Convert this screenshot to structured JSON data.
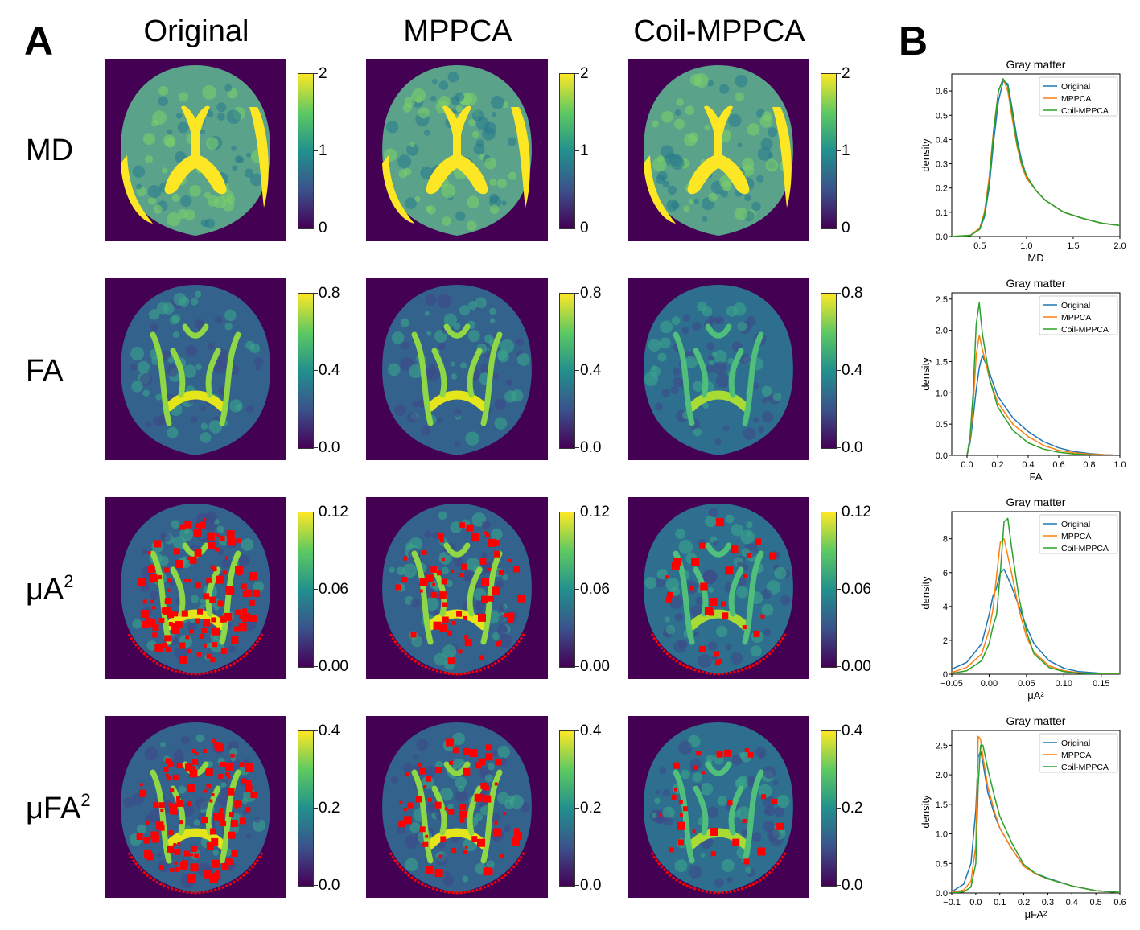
{
  "panel_a": {
    "letter": "A",
    "columns": [
      "Original",
      "MPPCA",
      "Coil-MPPCA"
    ],
    "rows": [
      {
        "label": "MD",
        "sup": "",
        "ticks": [
          "2",
          "1",
          "0"
        ]
      },
      {
        "label": "FA",
        "sup": "",
        "ticks": [
          "0.8",
          "0.4",
          "0.0"
        ]
      },
      {
        "label": "μA",
        "sup": "2",
        "ticks": [
          "0.12",
          "0.06",
          "0.00"
        ]
      },
      {
        "label": "μFA",
        "sup": "2",
        "ticks": [
          "0.4",
          "0.2",
          "0.0"
        ]
      }
    ],
    "colormap": [
      "#440154",
      "#3b528b",
      "#21908d",
      "#5dc962",
      "#fde725"
    ],
    "negative_marker_color": "#ff0000"
  },
  "panel_b": {
    "letter": "B",
    "colors": {
      "Original": "#1f77b4",
      "MPPCA": "#ff7f0e",
      "Coil-MPPCA": "#2ca02c"
    }
  },
  "chart_data": [
    {
      "type": "line",
      "title": "Gray matter",
      "xlabel": "MD",
      "ylabel": "density",
      "xlim": [
        0.2,
        2.0
      ],
      "ylim": [
        0,
        0.67
      ],
      "xticks": [
        "0.5",
        "1.0",
        "1.5",
        "2.0"
      ],
      "xtick_values": [
        0.5,
        1.0,
        1.5,
        2.0
      ],
      "yticks": [
        "0.0",
        "0.1",
        "0.2",
        "0.3",
        "0.4",
        "0.5",
        "0.6"
      ],
      "ytick_values": [
        0,
        0.1,
        0.2,
        0.3,
        0.4,
        0.5,
        0.6
      ],
      "legend": [
        "Original",
        "MPPCA",
        "Coil-MPPCA"
      ],
      "legend_position": "top-right",
      "series": [
        {
          "name": "Original",
          "x": [
            0.2,
            0.4,
            0.5,
            0.55,
            0.6,
            0.65,
            0.7,
            0.75,
            0.8,
            0.85,
            0.9,
            0.95,
            1.0,
            1.1,
            1.2,
            1.4,
            1.6,
            1.8,
            2.0
          ],
          "values": [
            0,
            0.005,
            0.03,
            0.08,
            0.2,
            0.4,
            0.56,
            0.64,
            0.63,
            0.52,
            0.4,
            0.31,
            0.25,
            0.19,
            0.15,
            0.1,
            0.075,
            0.055,
            0.045
          ]
        },
        {
          "name": "MPPCA",
          "x": [
            0.2,
            0.4,
            0.5,
            0.55,
            0.6,
            0.65,
            0.7,
            0.75,
            0.8,
            0.85,
            0.9,
            0.95,
            1.0,
            1.1,
            1.2,
            1.4,
            1.6,
            1.8,
            2.0
          ],
          "values": [
            0,
            0.005,
            0.035,
            0.1,
            0.24,
            0.45,
            0.6,
            0.65,
            0.6,
            0.48,
            0.37,
            0.29,
            0.24,
            0.19,
            0.15,
            0.1,
            0.075,
            0.055,
            0.045
          ]
        },
        {
          "name": "Coil-MPPCA",
          "x": [
            0.2,
            0.4,
            0.5,
            0.55,
            0.6,
            0.65,
            0.7,
            0.75,
            0.8,
            0.85,
            0.9,
            0.95,
            1.0,
            1.1,
            1.2,
            1.4,
            1.6,
            1.8,
            2.0
          ],
          "values": [
            0,
            0.004,
            0.03,
            0.09,
            0.22,
            0.44,
            0.6,
            0.65,
            0.62,
            0.5,
            0.38,
            0.3,
            0.25,
            0.19,
            0.15,
            0.1,
            0.075,
            0.055,
            0.045
          ]
        }
      ]
    },
    {
      "type": "line",
      "title": "Gray matter",
      "xlabel": "FA",
      "ylabel": "density",
      "xlim": [
        -0.1,
        1.0
      ],
      "ylim": [
        0,
        2.6
      ],
      "xticks": [
        "0.0",
        "0.2",
        "0.4",
        "0.6",
        "0.8",
        "1.0"
      ],
      "xtick_values": [
        0,
        0.2,
        0.4,
        0.6,
        0.8,
        1.0
      ],
      "yticks": [
        "0.0",
        "0.5",
        "1.0",
        "1.5",
        "2.0",
        "2.5"
      ],
      "ytick_values": [
        0,
        0.5,
        1.0,
        1.5,
        2.0,
        2.5
      ],
      "legend": [
        "Original",
        "MPPCA",
        "Coil-MPPCA"
      ],
      "legend_position": "top-right",
      "series": [
        {
          "name": "Original",
          "x": [
            -0.1,
            0.0,
            0.02,
            0.04,
            0.06,
            0.08,
            0.1,
            0.15,
            0.2,
            0.3,
            0.4,
            0.5,
            0.6,
            0.7,
            0.8,
            0.9,
            1.0
          ],
          "values": [
            0,
            0,
            0.2,
            0.6,
            1.05,
            1.4,
            1.6,
            1.3,
            0.95,
            0.6,
            0.38,
            0.22,
            0.12,
            0.06,
            0.03,
            0.01,
            0
          ]
        },
        {
          "name": "MPPCA",
          "x": [
            -0.1,
            0.0,
            0.02,
            0.04,
            0.06,
            0.08,
            0.1,
            0.15,
            0.2,
            0.3,
            0.4,
            0.5,
            0.6,
            0.7,
            0.8,
            0.9,
            1.0
          ],
          "values": [
            0,
            0,
            0.25,
            0.8,
            1.6,
            1.92,
            1.7,
            1.2,
            0.85,
            0.5,
            0.3,
            0.16,
            0.08,
            0.04,
            0.02,
            0.01,
            0
          ]
        },
        {
          "name": "Coil-MPPCA",
          "x": [
            -0.1,
            0.0,
            0.02,
            0.04,
            0.06,
            0.08,
            0.1,
            0.15,
            0.2,
            0.3,
            0.4,
            0.5,
            0.6,
            0.7,
            0.8,
            0.9,
            1.0
          ],
          "values": [
            0,
            0,
            0.3,
            1.0,
            2.1,
            2.44,
            1.95,
            1.2,
            0.78,
            0.4,
            0.2,
            0.1,
            0.05,
            0.02,
            0.01,
            0,
            0
          ]
        }
      ]
    },
    {
      "type": "line",
      "title": "Gray matter",
      "xlabel": "μA²",
      "ylabel": "density",
      "xlim": [
        -0.05,
        0.175
      ],
      "ylim": [
        0,
        9.6
      ],
      "xticks": [
        "−0.05",
        "0.00",
        "0.05",
        "0.10",
        "0.15"
      ],
      "xtick_values": [
        -0.05,
        0.0,
        0.05,
        0.1,
        0.15
      ],
      "yticks": [
        "0",
        "2",
        "4",
        "6",
        "8"
      ],
      "ytick_values": [
        0,
        2,
        4,
        6,
        8
      ],
      "legend": [
        "Original",
        "MPPCA",
        "Coil-MPPCA"
      ],
      "legend_position": "top-right",
      "series": [
        {
          "name": "Original",
          "x": [
            -0.05,
            -0.03,
            -0.01,
            0.0,
            0.005,
            0.01,
            0.015,
            0.02,
            0.03,
            0.04,
            0.05,
            0.06,
            0.08,
            0.1,
            0.12,
            0.15,
            0.175
          ],
          "values": [
            0.3,
            0.7,
            1.8,
            3.5,
            4.6,
            5.1,
            6.0,
            6.2,
            5.2,
            4.0,
            2.8,
            1.8,
            0.8,
            0.35,
            0.15,
            0.05,
            0.02
          ]
        },
        {
          "name": "MPPCA",
          "x": [
            -0.05,
            -0.03,
            -0.01,
            0.0,
            0.005,
            0.01,
            0.015,
            0.02,
            0.03,
            0.04,
            0.05,
            0.06,
            0.08,
            0.1,
            0.12,
            0.15,
            0.175
          ],
          "values": [
            0.1,
            0.4,
            1.2,
            2.6,
            3.8,
            5.8,
            7.8,
            8.0,
            6.0,
            3.8,
            2.2,
            1.3,
            0.5,
            0.2,
            0.08,
            0.02,
            0.01
          ]
        },
        {
          "name": "Coil-MPPCA",
          "x": [
            -0.05,
            -0.03,
            -0.01,
            0.0,
            0.005,
            0.01,
            0.015,
            0.02,
            0.025,
            0.03,
            0.04,
            0.05,
            0.06,
            0.08,
            0.1,
            0.12,
            0.15,
            0.175
          ],
          "values": [
            0.05,
            0.2,
            0.8,
            1.8,
            2.8,
            3.5,
            6.0,
            9.0,
            9.2,
            7.5,
            4.5,
            2.5,
            1.2,
            0.4,
            0.15,
            0.05,
            0.01,
            0
          ]
        }
      ]
    },
    {
      "type": "line",
      "title": "Gray matter",
      "xlabel": "μFA²",
      "ylabel": "density",
      "xlim": [
        -0.1,
        0.6
      ],
      "ylim": [
        0,
        2.75
      ],
      "xticks": [
        "−0.1",
        "0.0",
        "0.1",
        "0.2",
        "0.3",
        "0.4",
        "0.5",
        "0.6"
      ],
      "xtick_values": [
        -0.1,
        0.0,
        0.1,
        0.2,
        0.3,
        0.4,
        0.5,
        0.6
      ],
      "yticks": [
        "0.0",
        "0.5",
        "1.0",
        "1.5",
        "2.0",
        "2.5"
      ],
      "ytick_values": [
        0,
        0.5,
        1.0,
        1.5,
        2.0,
        2.5
      ],
      "legend": [
        "Original",
        "MPPCA",
        "Coil-MPPCA"
      ],
      "legend_position": "top-right",
      "series": [
        {
          "name": "Original",
          "x": [
            -0.1,
            -0.05,
            -0.02,
            0.0,
            0.01,
            0.02,
            0.03,
            0.05,
            0.08,
            0.1,
            0.15,
            0.2,
            0.25,
            0.3,
            0.4,
            0.5,
            0.6
          ],
          "values": [
            0.02,
            0.15,
            0.5,
            1.4,
            2.3,
            2.4,
            2.2,
            1.7,
            1.3,
            1.1,
            0.75,
            0.45,
            0.33,
            0.25,
            0.12,
            0.04,
            0.01
          ]
        },
        {
          "name": "MPPCA",
          "x": [
            -0.1,
            -0.05,
            -0.02,
            0.0,
            0.01,
            0.02,
            0.03,
            0.05,
            0.08,
            0.1,
            0.15,
            0.2,
            0.25,
            0.3,
            0.4,
            0.5,
            0.6
          ],
          "values": [
            0.01,
            0.05,
            0.2,
            0.8,
            2.65,
            2.6,
            2.3,
            1.8,
            1.35,
            1.1,
            0.75,
            0.45,
            0.32,
            0.24,
            0.12,
            0.04,
            0.01
          ]
        },
        {
          "name": "Coil-MPPCA",
          "x": [
            -0.1,
            -0.05,
            -0.02,
            0.0,
            0.01,
            0.02,
            0.03,
            0.05,
            0.08,
            0.1,
            0.15,
            0.2,
            0.25,
            0.3,
            0.4,
            0.5,
            0.6
          ],
          "values": [
            0,
            0.02,
            0.1,
            0.5,
            1.8,
            2.5,
            2.5,
            2.1,
            1.6,
            1.3,
            0.85,
            0.48,
            0.33,
            0.24,
            0.12,
            0.04,
            0.01
          ]
        }
      ]
    }
  ]
}
